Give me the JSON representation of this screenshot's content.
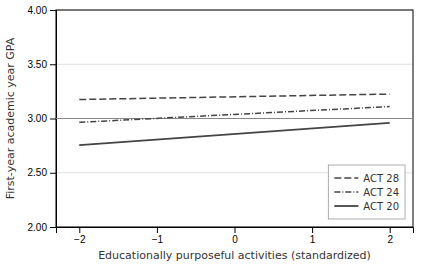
{
  "chart_data": {
    "type": "line",
    "x": [
      -2,
      2
    ],
    "series": [
      {
        "name": "ACT 28",
        "color": "#444444",
        "line_style": "dashed",
        "values": [
          3.175,
          3.225
        ]
      },
      {
        "name": "ACT 24",
        "color": "#444444",
        "line_style": "dashdot",
        "values": [
          2.965,
          3.11
        ]
      },
      {
        "name": "ACT 20",
        "color": "#444444",
        "line_style": "solid",
        "values": [
          2.755,
          2.96
        ]
      }
    ],
    "hline": 3.0,
    "xlabel": "Educationally purposeful activities (standardized)",
    "ylabel": "First-year academic year GPA",
    "xlim": [
      -2.3,
      2.3
    ],
    "ylim": [
      2.0,
      4.0
    ],
    "xticks": [
      {
        "value": -2,
        "label": "−2"
      },
      {
        "value": -1,
        "label": "−1"
      },
      0,
      1,
      2
    ],
    "yticks": [
      {
        "value": 2.0,
        "label": "2.00"
      },
      {
        "value": 2.5,
        "label": "2.50"
      },
      {
        "value": 3.0,
        "label": "3.00"
      },
      {
        "value": 3.5,
        "label": "3.50"
      },
      {
        "value": 4.0,
        "label": "4.00"
      }
    ],
    "grid": "y",
    "legend": "lower right"
  }
}
